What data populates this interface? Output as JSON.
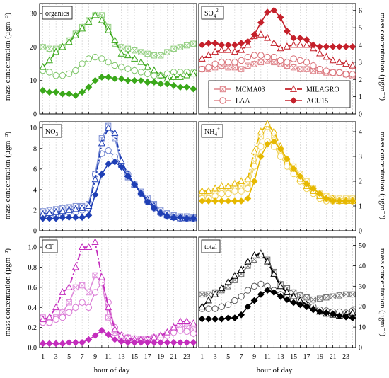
{
  "figure": {
    "ylabel_left": "mass concentration (µgm⁻³)",
    "ylabel_right": "mass concentration (µgm⁻³)",
    "xlabel": "hour of day"
  },
  "legend": {
    "entries": [
      {
        "name": "MCMA03",
        "marker": "square-x",
        "filled": false
      },
      {
        "name": "MILAGRO",
        "marker": "triangle",
        "filled": false
      },
      {
        "name": "LAA",
        "marker": "circle",
        "filled": false
      },
      {
        "name": "ACU15",
        "marker": "diamond",
        "filled": true
      }
    ]
  },
  "chart_data": [
    {
      "type": "line",
      "panel": "organics",
      "color": "#3aa81a",
      "x": [
        1,
        2,
        3,
        4,
        5,
        6,
        7,
        8,
        9,
        10,
        11,
        12,
        13,
        14,
        15,
        16,
        17,
        18,
        19,
        20,
        21,
        22,
        23,
        24
      ],
      "ylim": [
        0,
        33
      ],
      "yticks": [
        0,
        10,
        20,
        30
      ],
      "series": [
        {
          "name": "MCMA03",
          "values": [
            20,
            19.5,
            19.5,
            20,
            22,
            24,
            26,
            28,
            29.5,
            29.5,
            26,
            21,
            20,
            19.5,
            19,
            18.5,
            18,
            17.5,
            17.5,
            18.5,
            19.5,
            20,
            20.5,
            21
          ]
        },
        {
          "name": "MILAGRO",
          "values": [
            14,
            16,
            18.5,
            20,
            21.5,
            23.5,
            25.5,
            27.5,
            29.5,
            28,
            25,
            22,
            18,
            17.5,
            16.5,
            15.5,
            14,
            13,
            11.5,
            10.5,
            11,
            11,
            11.5,
            12
          ]
        },
        {
          "name": "LAA",
          "values": [
            13,
            12.5,
            11.5,
            11.5,
            12,
            13,
            15,
            16.5,
            17,
            16.5,
            15.5,
            14.5,
            14,
            13.5,
            13,
            12.5,
            12,
            11.5,
            11.5,
            12,
            12.5,
            12.5,
            12.5,
            12.5
          ]
        },
        {
          "name": "ACU15",
          "values": [
            7,
            6.5,
            6.5,
            6,
            6,
            5.5,
            6.5,
            8,
            10,
            11,
            11,
            10.5,
            10.5,
            10,
            10,
            10,
            9.5,
            9.5,
            9,
            9,
            8.5,
            8,
            8,
            7.5
          ]
        }
      ]
    },
    {
      "type": "line",
      "panel": "SO4",
      "color": "#c4202a",
      "x": [
        1,
        2,
        3,
        4,
        5,
        6,
        7,
        8,
        9,
        10,
        11,
        12,
        13,
        14,
        15,
        16,
        17,
        18,
        19,
        20,
        21,
        22,
        23,
        24
      ],
      "ylim": [
        0,
        6.4
      ],
      "yticks": [
        0,
        1,
        2,
        3,
        4,
        5,
        6
      ],
      "series": [
        {
          "name": "MCMA03",
          "values": [
            2.6,
            2.6,
            2.7,
            2.8,
            2.7,
            2.7,
            2.6,
            2.8,
            2.9,
            3.0,
            3.1,
            3.0,
            2.9,
            2.8,
            2.7,
            2.6,
            2.6,
            2.5,
            2.5,
            2.4,
            2.4,
            2.4,
            2.3,
            2.2
          ]
        },
        {
          "name": "MILAGRO",
          "values": [
            3.2,
            3.4,
            3.6,
            3.7,
            3.7,
            3.6,
            3.7,
            4.0,
            4.5,
            4.6,
            4.4,
            4.1,
            3.8,
            3.9,
            4.0,
            4.0,
            4.0,
            3.8,
            3.5,
            3.3,
            3.1,
            3.0,
            2.9,
            2.8
          ]
        },
        {
          "name": "LAA",
          "values": [
            2.6,
            2.7,
            2.9,
            3.0,
            3.0,
            3.0,
            3.1,
            3.3,
            3.4,
            3.4,
            3.3,
            3.3,
            3.1,
            3.0,
            3.2,
            3.1,
            3.0,
            2.8,
            2.6,
            2.5,
            2.4,
            2.4,
            2.3,
            2.3
          ]
        },
        {
          "name": "ACU15",
          "values": [
            4.0,
            4.1,
            4.1,
            4.0,
            4.0,
            4.0,
            4.1,
            4.2,
            4.6,
            5.3,
            5.9,
            6.0,
            5.6,
            4.8,
            4.4,
            4.4,
            4.3,
            4.0,
            3.9,
            3.9,
            3.9,
            3.9,
            3.9,
            3.9
          ]
        }
      ]
    },
    {
      "type": "line",
      "panel": "NO3",
      "color": "#1f3fb5",
      "x": [
        1,
        2,
        3,
        4,
        5,
        6,
        7,
        8,
        9,
        10,
        11,
        12,
        13,
        14,
        15,
        16,
        17,
        18,
        19,
        20,
        21,
        22,
        23,
        24
      ],
      "ylim": [
        0,
        10.6
      ],
      "yticks": [
        0,
        2,
        4,
        6,
        8,
        10
      ],
      "series": [
        {
          "name": "MCMA03",
          "values": [
            1.9,
            2.0,
            2.1,
            2.2,
            2.3,
            2.4,
            2.4,
            2.6,
            5.5,
            9.0,
            10.2,
            9.0,
            6.5,
            5.2,
            4.5,
            3.8,
            3.2,
            2.6,
            2.0,
            1.7,
            1.5,
            1.4,
            1.4,
            1.3
          ]
        },
        {
          "name": "MILAGRO",
          "values": [
            1.6,
            1.7,
            1.8,
            1.9,
            2.0,
            2.1,
            2.2,
            2.4,
            5.0,
            8.5,
            10.0,
            9.5,
            6.8,
            5.5,
            4.5,
            3.7,
            3.0,
            2.4,
            1.8,
            1.5,
            1.3,
            1.2,
            1.2,
            1.2
          ]
        },
        {
          "name": "LAA",
          "values": [
            1.4,
            1.5,
            1.6,
            1.7,
            1.8,
            1.8,
            2.0,
            2.2,
            5.5,
            7.5,
            7.8,
            7.2,
            6.5,
            5.5,
            4.5,
            3.6,
            2.8,
            2.2,
            1.7,
            1.4,
            1.3,
            1.2,
            1.2,
            1.2
          ]
        },
        {
          "name": "ACU15",
          "values": [
            1.2,
            1.2,
            1.2,
            1.3,
            1.3,
            1.3,
            1.3,
            1.5,
            3.5,
            5.5,
            6.5,
            6.7,
            6.2,
            5.3,
            4.5,
            3.6,
            2.8,
            2.2,
            1.7,
            1.4,
            1.3,
            1.3,
            1.2,
            1.2
          ]
        }
      ]
    },
    {
      "type": "line",
      "panel": "NH4",
      "color": "#e6b800",
      "x": [
        1,
        2,
        3,
        4,
        5,
        6,
        7,
        8,
        9,
        10,
        11,
        12,
        13,
        14,
        15,
        16,
        17,
        18,
        19,
        20,
        21,
        22,
        23,
        24
      ],
      "ylim": [
        0,
        4.4
      ],
      "yticks": [
        0,
        1,
        2,
        3,
        4
      ],
      "series": [
        {
          "name": "MCMA03",
          "values": [
            1.5,
            1.5,
            1.6,
            1.6,
            1.7,
            1.8,
            1.8,
            1.9,
            2.8,
            3.8,
            4.2,
            3.8,
            3.2,
            2.8,
            2.6,
            2.3,
            2.0,
            1.7,
            1.5,
            1.4,
            1.3,
            1.3,
            1.3,
            1.3
          ]
        },
        {
          "name": "MILAGRO",
          "values": [
            1.6,
            1.6,
            1.7,
            1.8,
            1.8,
            1.9,
            2.0,
            2.1,
            3.2,
            4.0,
            4.3,
            4.0,
            3.4,
            2.8,
            2.5,
            2.1,
            1.8,
            1.6,
            1.4,
            1.3,
            1.3,
            1.2,
            1.2,
            1.2
          ]
        },
        {
          "name": "LAA",
          "values": [
            1.3,
            1.3,
            1.4,
            1.5,
            1.5,
            1.6,
            1.6,
            1.7,
            2.6,
            3.4,
            3.6,
            3.4,
            3.0,
            2.6,
            2.3,
            2.0,
            1.7,
            1.5,
            1.3,
            1.2,
            1.2,
            1.2,
            1.2,
            1.2
          ]
        },
        {
          "name": "ACU15",
          "values": [
            1.2,
            1.2,
            1.2,
            1.2,
            1.2,
            1.2,
            1.2,
            1.3,
            2.0,
            3.0,
            3.5,
            3.6,
            3.3,
            2.9,
            2.5,
            2.2,
            1.9,
            1.7,
            1.5,
            1.3,
            1.2,
            1.2,
            1.2,
            1.2
          ]
        }
      ]
    },
    {
      "type": "line",
      "panel": "Cl",
      "color": "#c42dbd",
      "x": [
        1,
        2,
        3,
        4,
        5,
        6,
        7,
        8,
        9,
        10,
        11,
        12,
        13,
        14,
        15,
        16,
        17,
        18,
        19,
        20,
        21,
        22,
        23,
        24
      ],
      "ylim": [
        0,
        1.1
      ],
      "yticks": [
        0.0,
        0.2,
        0.4,
        0.6,
        0.8,
        1.0
      ],
      "series": [
        {
          "name": "MCMA03",
          "values": [
            0.3,
            0.25,
            0.3,
            0.35,
            0.45,
            0.6,
            0.62,
            0.55,
            0.72,
            0.65,
            0.3,
            0.15,
            0.11,
            0.1,
            0.09,
            0.09,
            0.09,
            0.1,
            0.11,
            0.13,
            0.18,
            0.22,
            0.2,
            0.18
          ]
        },
        {
          "name": "MILAGRO",
          "values": [
            0.28,
            0.3,
            0.4,
            0.55,
            0.6,
            0.8,
            1.0,
            1.0,
            1.05,
            0.7,
            0.4,
            0.18,
            0.12,
            0.09,
            0.08,
            0.08,
            0.08,
            0.1,
            0.12,
            0.15,
            0.2,
            0.26,
            0.26,
            0.24
          ]
        },
        {
          "name": "LAA",
          "values": [
            0.25,
            0.25,
            0.28,
            0.3,
            0.35,
            0.4,
            0.45,
            0.4,
            0.55,
            0.65,
            0.45,
            0.2,
            0.12,
            0.1,
            0.09,
            0.08,
            0.08,
            0.09,
            0.1,
            0.12,
            0.15,
            0.17,
            0.16,
            0.14
          ]
        },
        {
          "name": "ACU15",
          "values": [
            0.04,
            0.04,
            0.04,
            0.04,
            0.05,
            0.05,
            0.05,
            0.08,
            0.12,
            0.17,
            0.13,
            0.08,
            0.06,
            0.05,
            0.05,
            0.05,
            0.05,
            0.05,
            0.05,
            0.05,
            0.05,
            0.05,
            0.05,
            0.05
          ]
        }
      ]
    },
    {
      "type": "line",
      "panel": "total",
      "color": "#000000",
      "x": [
        1,
        2,
        3,
        4,
        5,
        6,
        7,
        8,
        9,
        10,
        11,
        12,
        13,
        14,
        15,
        16,
        17,
        18,
        19,
        20,
        21,
        22,
        23,
        24
      ],
      "ylim": [
        0,
        54
      ],
      "yticks": [
        0,
        10,
        20,
        30,
        40,
        50
      ],
      "series": [
        {
          "name": "MCMA03",
          "values": [
            26,
            26,
            27,
            28,
            30,
            33,
            36,
            40,
            43,
            45,
            43,
            37,
            31,
            29,
            27,
            25.5,
            24.5,
            23.5,
            24,
            24.5,
            25,
            25.5,
            26,
            26
          ]
        },
        {
          "name": "MILAGRO",
          "values": [
            20,
            23,
            26,
            29,
            32,
            35,
            38,
            42,
            45,
            46,
            42,
            36,
            30,
            27,
            25,
            23,
            21,
            19,
            17.5,
            16.5,
            16,
            15.5,
            16,
            17
          ]
        },
        {
          "name": "LAA",
          "values": [
            19,
            19,
            19,
            20,
            21,
            23,
            25,
            28,
            30,
            31,
            30,
            28,
            26,
            24.5,
            23,
            22,
            21,
            20,
            18.5,
            18,
            17.5,
            17.5,
            17,
            18
          ]
        },
        {
          "name": "ACU15",
          "values": [
            14,
            14,
            14,
            14,
            14.5,
            14.5,
            16,
            20,
            23,
            26,
            28,
            27,
            25,
            23.5,
            22,
            21,
            20,
            18.5,
            17.5,
            17,
            16.5,
            15.5,
            15,
            14.5
          ]
        }
      ]
    }
  ],
  "panels": {
    "organics": {
      "label": "organics",
      "sup": "",
      "sub": ""
    },
    "SO4": {
      "label": "SO",
      "sub": "4",
      "sup": "2-"
    },
    "NO3": {
      "label": "NO",
      "sub": "3",
      "sup": ""
    },
    "NH4": {
      "label": "NH",
      "sub": "4",
      "sup": "+"
    },
    "Cl": {
      "label": "Cl",
      "sub": "",
      "sup": "-"
    },
    "total": {
      "label": "total",
      "sub": "",
      "sup": ""
    }
  },
  "x_tick_labels": [
    "1",
    "3",
    "5",
    "7",
    "9",
    "11",
    "13",
    "15",
    "17",
    "19",
    "21",
    "23"
  ]
}
